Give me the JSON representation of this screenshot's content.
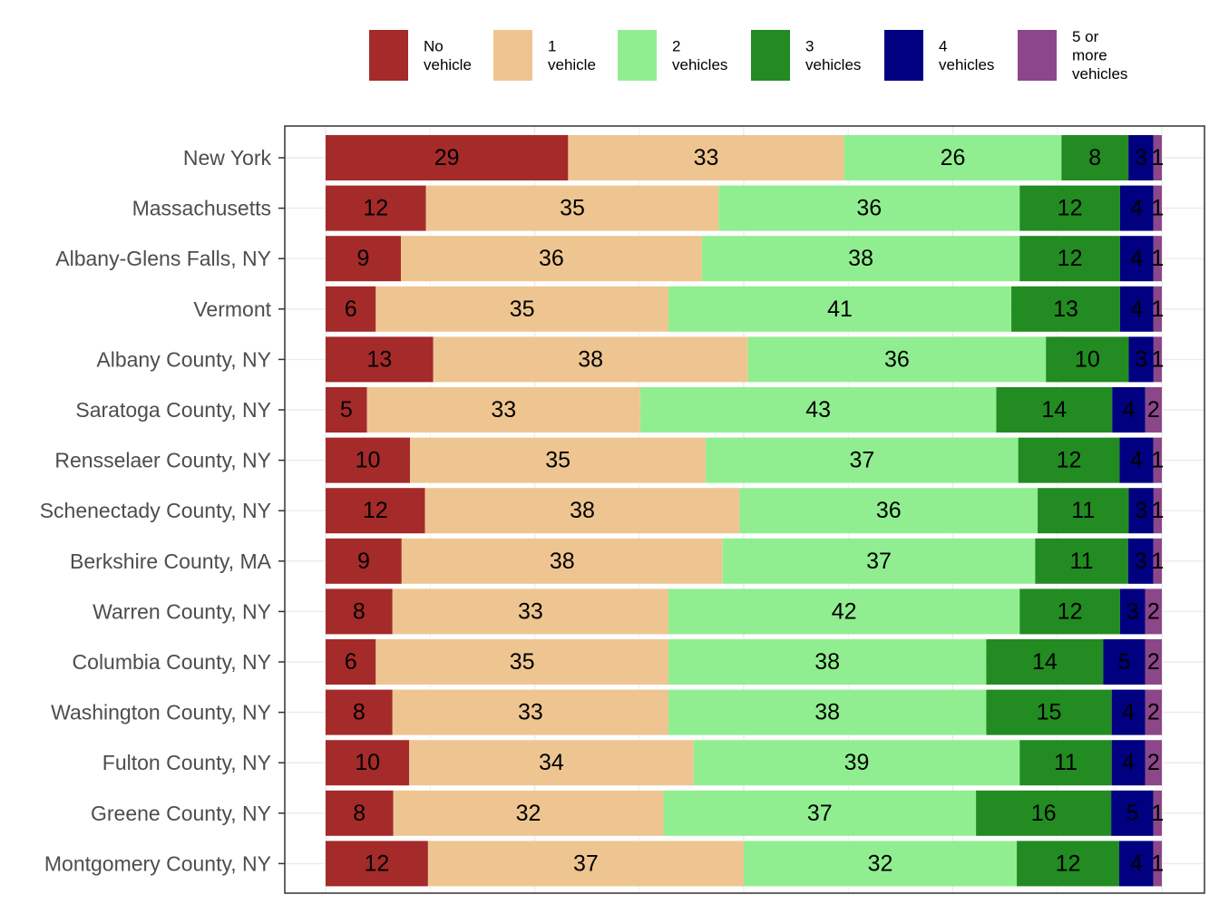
{
  "chart_data": {
    "type": "bar",
    "orientation": "horizontal",
    "stacked": true,
    "normalized": true,
    "grid": true,
    "legend_position": "top",
    "xlim": [
      0,
      100
    ],
    "categories": [
      "New York",
      "Massachusetts",
      "Albany-Glens Falls, NY",
      "Vermont",
      "Albany County, NY",
      "Saratoga County, NY",
      "Rensselaer County, NY",
      "Schenectady County, NY",
      "Berkshire County, MA",
      "Warren County, NY",
      "Columbia County, NY",
      "Washington County, NY",
      "Fulton County, NY",
      "Greene County, NY",
      "Montgomery County, NY"
    ],
    "series": [
      {
        "name": "No vehicle",
        "label_lines": [
          "No",
          "vehicle"
        ],
        "color": "#a52a2a",
        "values": [
          29,
          12,
          9,
          6,
          13,
          5,
          10,
          12,
          9,
          8,
          6,
          8,
          10,
          8,
          12
        ]
      },
      {
        "name": "1 vehicle",
        "label_lines": [
          "1",
          "vehicle"
        ],
        "color": "#eec591",
        "values": [
          33,
          35,
          36,
          35,
          38,
          33,
          35,
          38,
          38,
          33,
          35,
          33,
          34,
          32,
          37
        ]
      },
      {
        "name": "2 vehicles",
        "label_lines": [
          "2",
          "vehicles"
        ],
        "color": "#90ee90",
        "values": [
          26,
          36,
          38,
          41,
          36,
          43,
          37,
          36,
          37,
          42,
          38,
          38,
          39,
          37,
          32
        ]
      },
      {
        "name": "3 vehicles",
        "label_lines": [
          "3",
          "vehicles"
        ],
        "color": "#228b22",
        "values": [
          8,
          12,
          12,
          13,
          10,
          14,
          12,
          11,
          11,
          12,
          14,
          15,
          11,
          16,
          12
        ]
      },
      {
        "name": "4 vehicles",
        "label_lines": [
          "4",
          "vehicles"
        ],
        "color": "#000080",
        "values": [
          3,
          4,
          4,
          4,
          3,
          4,
          4,
          3,
          3,
          3,
          5,
          4,
          4,
          5,
          4
        ]
      },
      {
        "name": "5 or more vehicles",
        "label_lines": [
          "5 or",
          "more",
          "vehicles"
        ],
        "color": "#8b4789",
        "values": [
          1,
          1,
          1,
          1,
          1,
          2,
          1,
          1,
          1,
          2,
          2,
          2,
          2,
          1,
          1
        ]
      }
    ]
  }
}
